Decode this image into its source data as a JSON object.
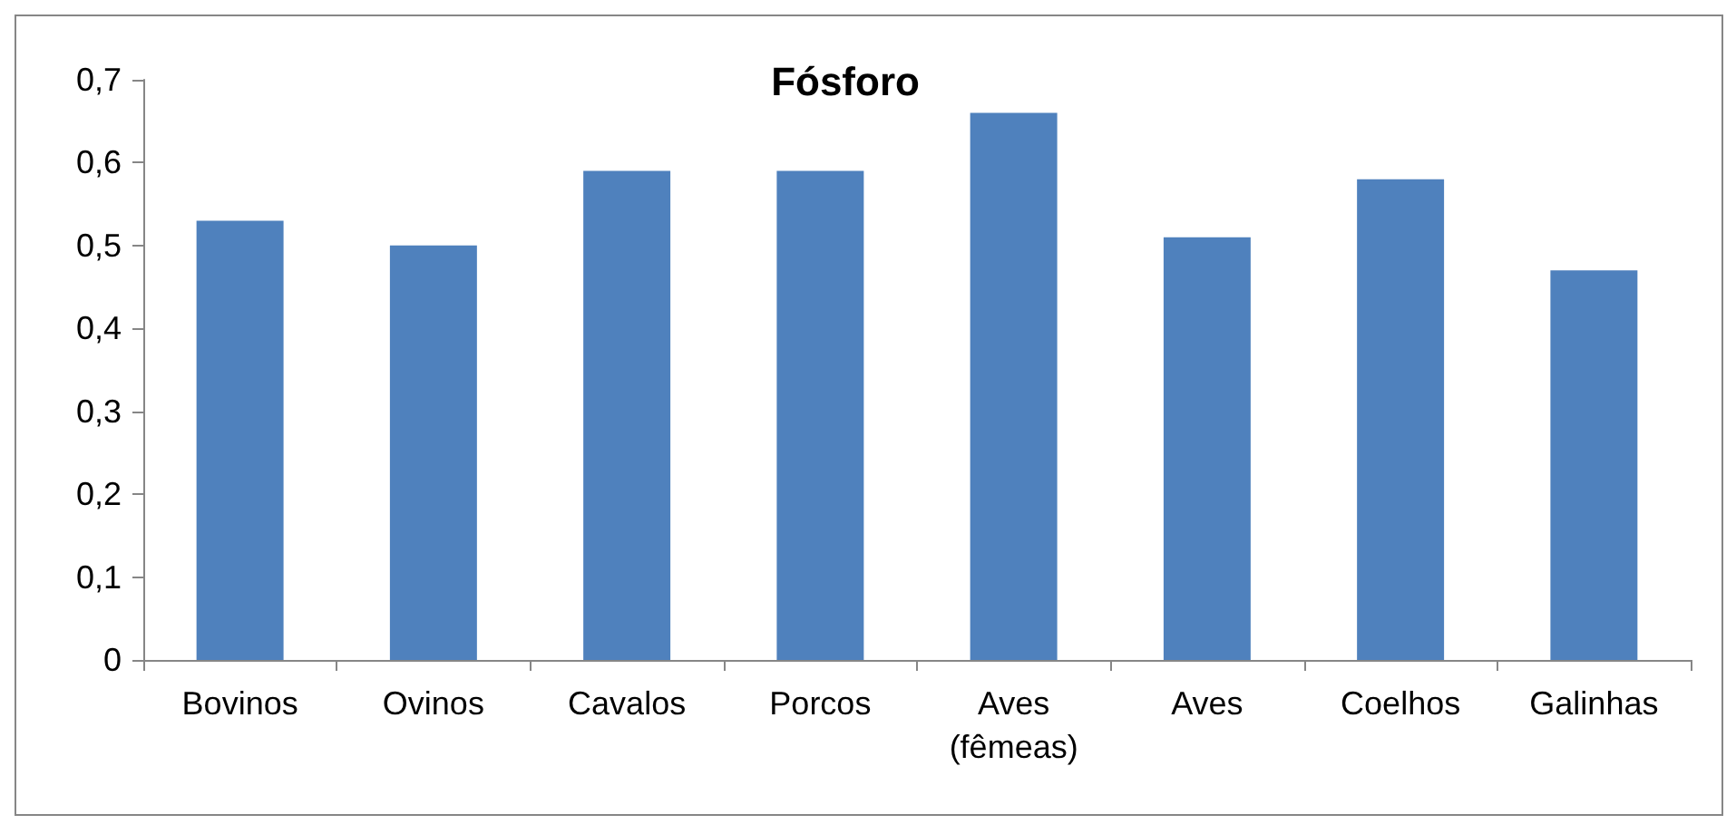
{
  "chart_data": {
    "type": "bar",
    "title": "Fósforo",
    "categories": [
      "Bovinos",
      "Ovinos",
      "Cavalos",
      "Porcos",
      "Aves\n(fêmeas)",
      "Aves",
      "Coelhos",
      "Galinhas"
    ],
    "values": [
      0.53,
      0.5,
      0.59,
      0.59,
      0.66,
      0.51,
      0.58,
      0.47
    ],
    "color": "#4f81bd",
    "ylim": [
      0,
      0.7
    ],
    "yticks": [
      0,
      {
        "value": 0.1,
        "label": "0,1"
      },
      {
        "value": 0.2,
        "label": "0,2"
      },
      {
        "value": 0.3,
        "label": "0,3"
      },
      {
        "value": 0.4,
        "label": "0,4"
      },
      {
        "value": 0.5,
        "label": "0,5"
      },
      {
        "value": 0.6,
        "label": "0,6"
      },
      {
        "value": 0.7,
        "label": "0,7"
      }
    ],
    "grid": false
  }
}
